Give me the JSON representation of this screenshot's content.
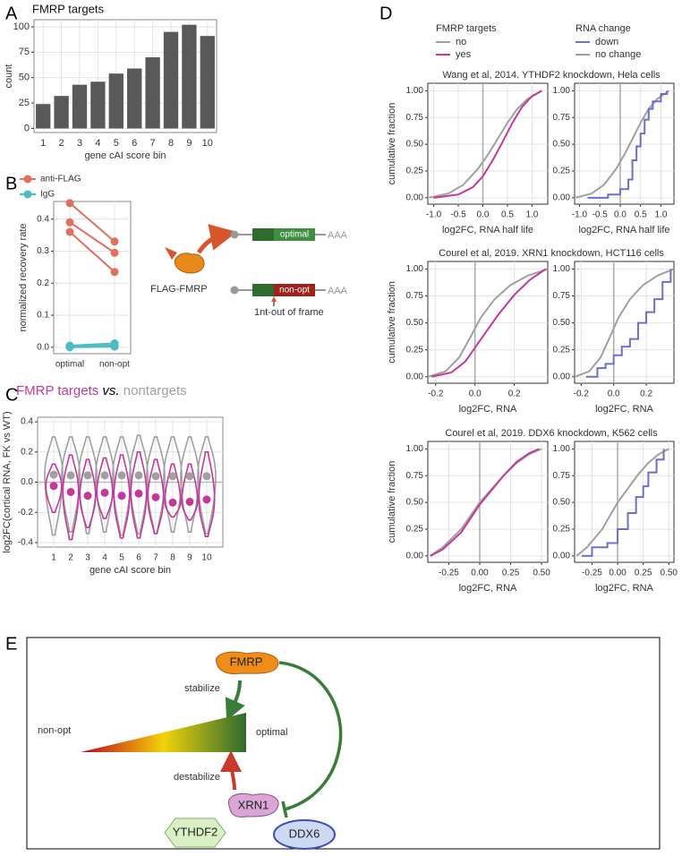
{
  "panel_labels": [
    "A",
    "B",
    "C",
    "D",
    "E"
  ],
  "chart_data": [
    {
      "type": "bar",
      "title": "FMRP targets",
      "categories": [
        "1",
        "2",
        "3",
        "4",
        "5",
        "6",
        "7",
        "8",
        "9",
        "10"
      ],
      "values": [
        24,
        32,
        43,
        46,
        54,
        59,
        70,
        95,
        102,
        91
      ],
      "color": "#595959",
      "x_label": "gene cAI score bin",
      "y_label": "count",
      "ylim": [
        -4,
        107
      ],
      "yticks": [
        0,
        25,
        50,
        75,
        100
      ],
      "grid": true
    },
    {
      "type": "line",
      "categories": [
        "optimal",
        "non-opt"
      ],
      "y_label": "normalized recovery rate",
      "ylim": [
        -0.02,
        0.455
      ],
      "yticks": [
        {
          "value": 0,
          "label": "0.0"
        },
        0.1,
        0.2,
        0.3,
        0.4
      ],
      "grid": true,
      "series": [
        {
          "name": "anti-FLAG",
          "color": "#e2705f",
          "values": [
            [
              0.45,
              0.33
            ],
            [
              0.39,
              0.295
            ],
            [
              0.36,
              0.235
            ]
          ]
        },
        {
          "name": "IgG",
          "color": "#4dbbc3",
          "values": [
            [
              0.005,
              0.012
            ],
            [
              0.002,
              0.006
            ],
            [
              0,
              0.002
            ]
          ]
        }
      ]
    },
    {
      "type": "violin",
      "title_joiner": "vs.",
      "categories": [
        "1",
        "2",
        "3",
        "4",
        "5",
        "6",
        "7",
        "8",
        "9",
        "10"
      ],
      "x_label": "gene cAI score bin",
      "y_label": "log2FC(cortical RNA, FK vs WT)",
      "ylim": [
        -0.43,
        0.43
      ],
      "yticks": [
        -0.4,
        -0.2,
        {
          "value": 0,
          "label": "0.0"
        },
        0.2,
        0.4
      ],
      "hline": 0,
      "grid": true,
      "series": [
        {
          "name": "FMRP targets",
          "color": "#c2399a",
          "medians": [
            -0.025,
            -0.065,
            -0.09,
            -0.07,
            -0.09,
            -0.075,
            -0.1,
            -0.135,
            -0.13,
            -0.115
          ],
          "ranges": [
            [
              -0.2,
              0.12
            ],
            [
              -0.38,
              0.18
            ],
            [
              -0.3,
              0.15
            ],
            [
              -0.24,
              0.16
            ],
            [
              -0.37,
              0.18
            ],
            [
              -0.37,
              0.2
            ],
            [
              -0.34,
              0.15
            ],
            [
              -0.23,
              0.12
            ],
            [
              -0.25,
              0.12
            ],
            [
              -0.36,
              0.2
            ]
          ]
        },
        {
          "name": "nontargets",
          "color": "#a0a0a0",
          "medians": [
            0.05,
            0.045,
            0.045,
            0.045,
            0.045,
            0.045,
            0.04,
            0.04,
            0.04,
            0.04
          ],
          "ranges": [
            [
              -0.35,
              0.3
            ],
            [
              -0.33,
              0.3
            ],
            [
              -0.34,
              0.3
            ],
            [
              -0.33,
              0.3
            ],
            [
              -0.35,
              0.3
            ],
            [
              -0.34,
              0.31
            ],
            [
              -0.34,
              0.3
            ],
            [
              -0.33,
              0.3
            ],
            [
              -0.33,
              0.3
            ],
            [
              -0.34,
              0.3
            ]
          ]
        }
      ]
    },
    {
      "type": "ecdf",
      "title": "Wang et al, 2014. YTHDF2 knockdown, Hela cells",
      "legend_title": "FMRP targets",
      "x_label": "log2FC, RNA half life",
      "y_label": "cumulative fraction",
      "xlim": [
        -1.12,
        1.32
      ],
      "xticks": [
        {
          "value": -1,
          "label": "-1.0"
        },
        -0.5,
        {
          "value": 0,
          "label": "0.0"
        },
        0.5,
        {
          "value": 1,
          "label": "1.0"
        }
      ],
      "ylim": [
        -0.06,
        1.07
      ],
      "yticks": [
        {
          "value": 0,
          "label": "0.00"
        },
        0.25,
        {
          "value": 0.5,
          "label": "0.50"
        },
        0.75,
        {
          "value": 1,
          "label": "1.00"
        }
      ],
      "vline": 0,
      "grid": true,
      "series": [
        {
          "name": "no",
          "color": "#a0a0a0",
          "x": [
            -1.1,
            -0.7,
            -0.4,
            -0.1,
            0.1,
            0.3,
            0.5,
            0.7,
            0.9,
            1.2
          ],
          "values": [
            0,
            0.04,
            0.12,
            0.27,
            0.4,
            0.55,
            0.7,
            0.83,
            0.92,
            1
          ]
        },
        {
          "name": "yes",
          "color": "#c2399a",
          "x": [
            -1,
            -0.5,
            -0.2,
            0,
            0.2,
            0.4,
            0.6,
            0.8,
            1,
            1.2
          ],
          "values": [
            0,
            0.03,
            0.1,
            0.2,
            0.35,
            0.52,
            0.7,
            0.85,
            0.95,
            1
          ]
        }
      ]
    },
    {
      "type": "ecdf",
      "legend_title": "RNA change",
      "x_label": "log2FC, RNA half life",
      "xlim": [
        -1.12,
        1.32
      ],
      "xticks": [
        {
          "value": -1,
          "label": "-1.0"
        },
        -0.5,
        {
          "value": 0,
          "label": "0.0"
        },
        0.5,
        {
          "value": 1,
          "label": "1.0"
        }
      ],
      "ylim": [
        -0.06,
        1.07
      ],
      "yticks": [
        {
          "value": 0,
          "label": "0.00"
        },
        0.25,
        {
          "value": 0.5,
          "label": "0.50"
        },
        0.75,
        {
          "value": 1,
          "label": "1.00"
        }
      ],
      "vline": 0,
      "grid": true,
      "series": [
        {
          "name": "down",
          "color": "#6a72c8",
          "step": true,
          "x": [
            -0.8,
            -0.3,
            0,
            0.2,
            0.3,
            0.4,
            0.5,
            0.6,
            0.7,
            0.8,
            1,
            1.15
          ],
          "values": [
            0,
            0.03,
            0.08,
            0.17,
            0.35,
            0.48,
            0.6,
            0.73,
            0.83,
            0.9,
            0.97,
            1
          ]
        },
        {
          "name": "no change",
          "color": "#a0a0a0",
          "x": [
            -1.1,
            -0.7,
            -0.4,
            -0.1,
            0.1,
            0.3,
            0.5,
            0.7,
            0.9,
            1.2
          ],
          "values": [
            0,
            0.04,
            0.12,
            0.27,
            0.4,
            0.55,
            0.7,
            0.83,
            0.92,
            1
          ]
        }
      ]
    },
    {
      "type": "ecdf",
      "title": "Courel et al, 2019. XRN1 knockdown, HCT116 cells",
      "x_label": "log2FC, RNA",
      "y_label": "cumulative fraction",
      "xlim": [
        -0.24,
        0.37
      ],
      "xticks": [
        -0.2,
        {
          "value": 0,
          "label": "0.0"
        },
        0.2
      ],
      "ylim": [
        -0.06,
        1.07
      ],
      "yticks": [
        {
          "value": 0,
          "label": "0.00"
        },
        0.25,
        {
          "value": 0.5,
          "label": "0.50"
        },
        0.75,
        {
          "value": 1,
          "label": "1.00"
        }
      ],
      "vline": 0,
      "grid": true,
      "series": [
        {
          "color": "#a0a0a0",
          "x": [
            -0.24,
            -0.15,
            -0.08,
            -0.02,
            0.03,
            0.1,
            0.18,
            0.27,
            0.37
          ],
          "values": [
            0,
            0.05,
            0.18,
            0.38,
            0.55,
            0.72,
            0.85,
            0.94,
            1
          ]
        },
        {
          "color": "#c2399a",
          "x": [
            -0.22,
            -0.12,
            -0.05,
            0,
            0.05,
            0.12,
            0.2,
            0.28,
            0.36
          ],
          "values": [
            0,
            0.04,
            0.14,
            0.27,
            0.4,
            0.58,
            0.76,
            0.9,
            1
          ]
        }
      ]
    },
    {
      "type": "ecdf",
      "x_label": "log2FC, RNA",
      "xlim": [
        -0.24,
        0.37
      ],
      "xticks": [
        -0.2,
        {
          "value": 0,
          "label": "0.0"
        },
        0.2
      ],
      "ylim": [
        -0.06,
        1.07
      ],
      "yticks": [
        {
          "value": 0,
          "label": "0.00"
        },
        0.25,
        {
          "value": 0.5,
          "label": "0.50"
        },
        0.75,
        {
          "value": 1,
          "label": "1.00"
        }
      ],
      "vline": 0,
      "grid": true,
      "series": [
        {
          "color": "#6a72c8",
          "step": true,
          "x": [
            -0.17,
            -0.1,
            -0.05,
            0,
            0.05,
            0.1,
            0.15,
            0.2,
            0.25,
            0.3,
            0.35
          ],
          "values": [
            0,
            0.08,
            0.12,
            0.2,
            0.28,
            0.35,
            0.5,
            0.6,
            0.72,
            0.88,
            1
          ]
        },
        {
          "color": "#a0a0a0",
          "x": [
            -0.24,
            -0.15,
            -0.08,
            -0.02,
            0.03,
            0.1,
            0.18,
            0.27,
            0.37
          ],
          "values": [
            0,
            0.05,
            0.18,
            0.38,
            0.55,
            0.72,
            0.85,
            0.94,
            1
          ]
        }
      ]
    },
    {
      "type": "ecdf",
      "title": "Courel et al, 2019. DDX6 knockdown, K562 cells",
      "x_label": "log2FC, RNA",
      "y_label": "cumulative fraction",
      "xlim": [
        -0.42,
        0.55
      ],
      "xticks": [
        -0.25,
        {
          "value": 0,
          "label": "0.00"
        },
        0.25,
        {
          "value": 0.5,
          "label": "0.50"
        }
      ],
      "ylim": [
        -0.06,
        1.07
      ],
      "yticks": [
        {
          "value": 0,
          "label": "0.00"
        },
        0.25,
        {
          "value": 0.5,
          "label": "0.50"
        },
        0.75,
        {
          "value": 1,
          "label": "1.00"
        }
      ],
      "vline": 0,
      "grid": true,
      "series": [
        {
          "color": "#a0a0a0",
          "x": [
            -0.4,
            -0.3,
            -0.15,
            0,
            0.1,
            0.2,
            0.3,
            0.4,
            0.5
          ],
          "values": [
            0,
            0.08,
            0.25,
            0.5,
            0.63,
            0.76,
            0.87,
            0.95,
            1
          ]
        },
        {
          "color": "#c2399a",
          "x": [
            -0.4,
            -0.3,
            -0.15,
            0,
            0.1,
            0.2,
            0.3,
            0.4,
            0.48
          ],
          "values": [
            0,
            0.06,
            0.22,
            0.48,
            0.62,
            0.76,
            0.88,
            0.96,
            1
          ]
        }
      ]
    },
    {
      "type": "ecdf",
      "x_label": "log2FC, RNA",
      "xlim": [
        -0.42,
        0.55
      ],
      "xticks": [
        -0.25,
        {
          "value": 0,
          "label": "0.00"
        },
        0.25,
        {
          "value": 0.5,
          "label": "0.50"
        }
      ],
      "ylim": [
        -0.06,
        1.07
      ],
      "yticks": [
        {
          "value": 0,
          "label": "0.00"
        },
        0.25,
        {
          "value": 0.5,
          "label": "0.50"
        },
        0.75,
        {
          "value": 1,
          "label": "1.00"
        }
      ],
      "vline": 0,
      "grid": true,
      "series": [
        {
          "color": "#6a72c8",
          "step": true,
          "x": [
            -0.35,
            -0.25,
            -0.1,
            0,
            0.1,
            0.18,
            0.25,
            0.3,
            0.38,
            0.45
          ],
          "values": [
            0,
            0.08,
            0.12,
            0.25,
            0.4,
            0.55,
            0.65,
            0.78,
            0.9,
            1
          ]
        },
        {
          "color": "#a0a0a0",
          "x": [
            -0.4,
            -0.3,
            -0.15,
            0,
            0.1,
            0.2,
            0.3,
            0.4,
            0.5
          ],
          "values": [
            0,
            0.08,
            0.25,
            0.5,
            0.63,
            0.76,
            0.87,
            0.95,
            1
          ]
        }
      ]
    }
  ],
  "diagram_b": {
    "top_region": "optimal",
    "top_tail": "AAA",
    "protein": "FLAG-FMRP",
    "bottom_region": "non-opt",
    "bottom_tail": "AAA",
    "annotation": "1nt-out of frame"
  },
  "diagram_e": {
    "fmrp": "FMRP",
    "stabilize": "stabilize",
    "low": "non-opt",
    "high": "optimal",
    "destabilize": "destabilize",
    "xrn1": "XRN1",
    "ythdf2": "YTHDF2",
    "ddx6": "DDX6"
  }
}
